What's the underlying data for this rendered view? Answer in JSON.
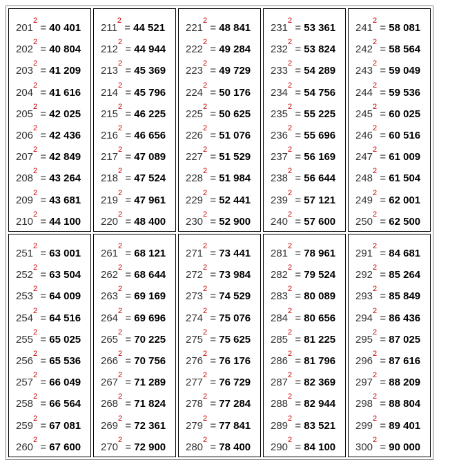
{
  "table": {
    "exponent": "2",
    "equals": " = ",
    "blocks": [
      [
        [
          "201",
          "40 401"
        ],
        [
          "202",
          "40 804"
        ],
        [
          "203",
          "41 209"
        ],
        [
          "204",
          "41 616"
        ],
        [
          "205",
          "42 025"
        ],
        [
          "206",
          "42 436"
        ],
        [
          "207",
          "42 849"
        ],
        [
          "208",
          "43 264"
        ],
        [
          "209",
          "43 681"
        ],
        [
          "210",
          "44 100"
        ]
      ],
      [
        [
          "211",
          "44 521"
        ],
        [
          "212",
          "44 944"
        ],
        [
          "213",
          "45 369"
        ],
        [
          "214",
          "45 796"
        ],
        [
          "215",
          "46 225"
        ],
        [
          "216",
          "46 656"
        ],
        [
          "217",
          "47 089"
        ],
        [
          "218",
          "47 524"
        ],
        [
          "219",
          "47 961"
        ],
        [
          "220",
          "48 400"
        ]
      ],
      [
        [
          "221",
          "48 841"
        ],
        [
          "222",
          "49 284"
        ],
        [
          "223",
          "49 729"
        ],
        [
          "224",
          "50 176"
        ],
        [
          "225",
          "50 625"
        ],
        [
          "226",
          "51 076"
        ],
        [
          "227",
          "51 529"
        ],
        [
          "228",
          "51 984"
        ],
        [
          "229",
          "52 441"
        ],
        [
          "230",
          "52 900"
        ]
      ],
      [
        [
          "231",
          "53 361"
        ],
        [
          "232",
          "53 824"
        ],
        [
          "233",
          "54 289"
        ],
        [
          "234",
          "54 756"
        ],
        [
          "235",
          "55 225"
        ],
        [
          "236",
          "55 696"
        ],
        [
          "237",
          "56 169"
        ],
        [
          "238",
          "56 644"
        ],
        [
          "239",
          "57 121"
        ],
        [
          "240",
          "57 600"
        ]
      ],
      [
        [
          "241",
          "58 081"
        ],
        [
          "242",
          "58 564"
        ],
        [
          "243",
          "59 049"
        ],
        [
          "244",
          "59 536"
        ],
        [
          "245",
          "60 025"
        ],
        [
          "246",
          "60 516"
        ],
        [
          "247",
          "61 009"
        ],
        [
          "248",
          "61 504"
        ],
        [
          "249",
          "62 001"
        ],
        [
          "250",
          "62 500"
        ]
      ],
      [
        [
          "251",
          "63 001"
        ],
        [
          "252",
          "63 504"
        ],
        [
          "253",
          "64 009"
        ],
        [
          "254",
          "64 516"
        ],
        [
          "255",
          "65 025"
        ],
        [
          "256",
          "65 536"
        ],
        [
          "257",
          "66 049"
        ],
        [
          "258",
          "66 564"
        ],
        [
          "259",
          "67 081"
        ],
        [
          "260",
          "67 600"
        ]
      ],
      [
        [
          "261",
          "68 121"
        ],
        [
          "262",
          "68 644"
        ],
        [
          "263",
          "69 169"
        ],
        [
          "264",
          "69 696"
        ],
        [
          "265",
          "70 225"
        ],
        [
          "266",
          "70 756"
        ],
        [
          "267",
          "71 289"
        ],
        [
          "268",
          "71 824"
        ],
        [
          "269",
          "72 361"
        ],
        [
          "270",
          "72 900"
        ]
      ],
      [
        [
          "271",
          "73 441"
        ],
        [
          "272",
          "73 984"
        ],
        [
          "273",
          "74 529"
        ],
        [
          "274",
          "75 076"
        ],
        [
          "275",
          "75 625"
        ],
        [
          "276",
          "76 176"
        ],
        [
          "277",
          "76 729"
        ],
        [
          "278",
          "77 284"
        ],
        [
          "279",
          "77 841"
        ],
        [
          "280",
          "78 400"
        ]
      ],
      [
        [
          "281",
          "78 961"
        ],
        [
          "282",
          "79 524"
        ],
        [
          "283",
          "80 089"
        ],
        [
          "284",
          "80 656"
        ],
        [
          "285",
          "81 225"
        ],
        [
          "286",
          "81 796"
        ],
        [
          "287",
          "82 369"
        ],
        [
          "288",
          "82 944"
        ],
        [
          "289",
          "83 521"
        ],
        [
          "290",
          "84 100"
        ]
      ],
      [
        [
          "291",
          "84 681"
        ],
        [
          "292",
          "85 264"
        ],
        [
          "293",
          "85 849"
        ],
        [
          "294",
          "86 436"
        ],
        [
          "295",
          "87 025"
        ],
        [
          "296",
          "87 616"
        ],
        [
          "297",
          "88 209"
        ],
        [
          "298",
          "88 804"
        ],
        [
          "299",
          "89 401"
        ],
        [
          "300",
          "90 000"
        ]
      ]
    ]
  }
}
